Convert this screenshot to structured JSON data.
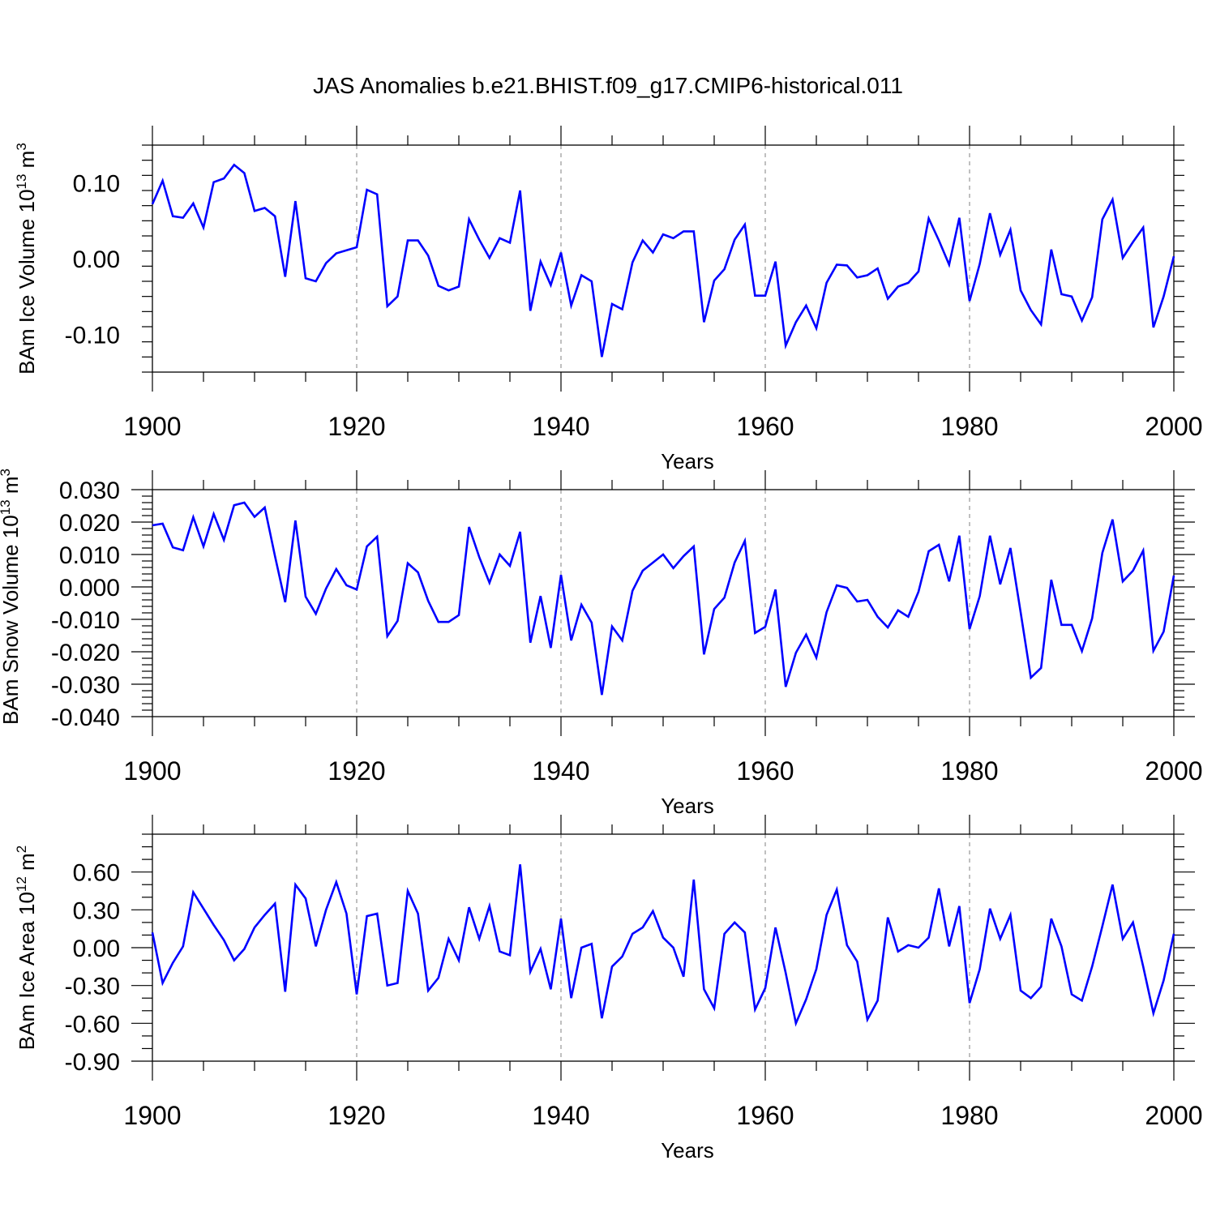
{
  "title": "JAS Anomalies b.e21.BHIST.f09_g17.CMIP6-historical.011",
  "colors": {
    "line": "#0000ff",
    "axis": "#000000",
    "grid": "#808080"
  },
  "chart_data": [
    {
      "type": "line",
      "name": "ice-volume",
      "ylabel_main": "BAm Ice Volume 10",
      "ylabel_sup1": "13",
      "ylabel_mid": " m",
      "ylabel_sup2": "3",
      "xlabel": "Years",
      "xlim": [
        1900,
        2000
      ],
      "ylim": [
        -0.15,
        0.15
      ],
      "x_ticks": [
        1900,
        1920,
        1940,
        1960,
        1980,
        2000
      ],
      "x_tick_labels": [
        "1900",
        "1920",
        "1940",
        "1960",
        "1980",
        "2000"
      ],
      "y_ticks": [
        -0.1,
        0.0,
        0.1
      ],
      "y_tick_labels": [
        "-0.10",
        "0.00",
        "0.10"
      ],
      "y_minor_step": 0.02,
      "x_start": 1900,
      "series": [
        {
          "name": "BAm Ice Volume",
          "values": [
            0.072,
            0.103,
            0.056,
            0.054,
            0.073,
            0.041,
            0.101,
            0.106,
            0.124,
            0.113,
            0.063,
            0.067,
            0.056,
            -0.024,
            0.076,
            -0.026,
            -0.03,
            -0.006,
            0.007,
            0.011,
            0.015,
            0.091,
            0.085,
            -0.063,
            -0.05,
            0.024,
            0.024,
            0.004,
            -0.036,
            -0.042,
            -0.037,
            0.052,
            0.025,
            0.001,
            0.027,
            0.021,
            0.09,
            -0.069,
            -0.004,
            -0.035,
            0.008,
            -0.062,
            -0.022,
            -0.03,
            -0.13,
            -0.06,
            -0.067,
            -0.005,
            0.024,
            0.008,
            0.032,
            0.027,
            0.036,
            0.036,
            -0.084,
            -0.029,
            -0.014,
            0.025,
            0.045,
            -0.049,
            -0.049,
            -0.004,
            -0.115,
            -0.084,
            -0.062,
            -0.092,
            -0.032,
            -0.008,
            -0.009,
            -0.025,
            -0.022,
            -0.013,
            -0.053,
            -0.037,
            -0.032,
            -0.017,
            0.053,
            0.024,
            -0.008,
            0.054,
            -0.056,
            -0.007,
            0.06,
            0.005,
            0.038,
            -0.042,
            -0.068,
            -0.087,
            0.012,
            -0.047,
            -0.05,
            -0.082,
            -0.051,
            0.052,
            0.078,
            0.001,
            0.022,
            0.041,
            -0.091,
            -0.05,
            0.003
          ]
        }
      ]
    },
    {
      "type": "line",
      "name": "snow-volume",
      "ylabel_main": "BAm Snow Volume 10",
      "ylabel_sup1": "13",
      "ylabel_mid": " m",
      "ylabel_sup2": "3",
      "xlabel": "Years",
      "xlim": [
        1900,
        2000
      ],
      "ylim": [
        -0.04,
        0.03
      ],
      "x_ticks": [
        1900,
        1920,
        1940,
        1960,
        1980,
        2000
      ],
      "x_tick_labels": [
        "1900",
        "1920",
        "1940",
        "1960",
        "1980",
        "2000"
      ],
      "y_ticks": [
        -0.04,
        -0.03,
        -0.02,
        -0.01,
        0.0,
        0.01,
        0.02,
        0.03
      ],
      "y_tick_labels": [
        "-0.040",
        "-0.030",
        "-0.020",
        "-0.010",
        "0.000",
        "0.010",
        "0.020",
        "0.030"
      ],
      "y_minor_step": 0.002,
      "x_start": 1900,
      "series": [
        {
          "name": "BAm Snow Volume",
          "values": [
            0.019,
            0.0195,
            0.0122,
            0.0113,
            0.0215,
            0.0125,
            0.0225,
            0.0145,
            0.0252,
            0.026,
            0.0216,
            0.0245,
            0.0095,
            -0.0047,
            0.0205,
            -0.003,
            -0.0083,
            -0.0005,
            0.0055,
            0.0005,
            -0.0008,
            0.0125,
            0.0155,
            -0.0152,
            -0.0105,
            0.0073,
            0.0045,
            -0.0043,
            -0.0108,
            -0.0108,
            -0.0087,
            0.0185,
            0.0092,
            0.0013,
            0.01,
            0.0065,
            0.017,
            -0.0172,
            -0.0028,
            -0.0188,
            0.0037,
            -0.0165,
            -0.0055,
            -0.011,
            -0.0333,
            -0.0122,
            -0.0165,
            -0.0012,
            0.005,
            0.0075,
            0.01,
            0.0058,
            0.0095,
            0.0125,
            -0.0208,
            -0.0068,
            -0.0033,
            0.0075,
            0.0142,
            -0.0142,
            -0.0123,
            -0.0008,
            -0.0308,
            -0.0203,
            -0.0147,
            -0.0218,
            -0.0078,
            0.0005,
            -0.0003,
            -0.0045,
            -0.004,
            -0.0092,
            -0.0125,
            -0.0072,
            -0.0092,
            -0.0015,
            0.011,
            0.013,
            0.0017,
            0.0158,
            -0.013,
            -0.0028,
            0.0158,
            0.0008,
            0.012,
            -0.0078,
            -0.028,
            -0.025,
            0.0022,
            -0.0117,
            -0.0117,
            -0.0198,
            -0.0097,
            0.0105,
            0.0208,
            0.0017,
            0.005,
            0.0112,
            -0.0197,
            -0.0138,
            0.0035
          ]
        }
      ]
    },
    {
      "type": "line",
      "name": "ice-area",
      "ylabel_main": "BAm Ice Area 10",
      "ylabel_sup1": "12",
      "ylabel_mid": " m",
      "ylabel_sup2": "2",
      "xlabel": "Years",
      "xlim": [
        1900,
        2000
      ],
      "ylim": [
        -0.9,
        0.9
      ],
      "x_ticks": [
        1900,
        1920,
        1940,
        1960,
        1980,
        2000
      ],
      "x_tick_labels": [
        "1900",
        "1920",
        "1940",
        "1960",
        "1980",
        "2000"
      ],
      "y_ticks": [
        -0.9,
        -0.6,
        -0.3,
        0.0,
        0.3,
        0.6
      ],
      "y_tick_labels": [
        "-0.90",
        "-0.60",
        "-0.30",
        "0.00",
        "0.30",
        "0.60"
      ],
      "y_minor_step": 0.1,
      "x_start": 1900,
      "series": [
        {
          "name": "BAm Ice Area",
          "values": [
            0.12,
            -0.28,
            -0.12,
            0.01,
            0.44,
            0.31,
            0.18,
            0.06,
            -0.1,
            -0.01,
            0.16,
            0.26,
            0.35,
            -0.35,
            0.5,
            0.39,
            0.01,
            0.3,
            0.52,
            0.27,
            -0.37,
            0.25,
            0.27,
            -0.3,
            -0.28,
            0.45,
            0.27,
            -0.34,
            -0.24,
            0.07,
            -0.1,
            0.32,
            0.07,
            0.33,
            -0.03,
            -0.06,
            0.66,
            -0.19,
            -0.01,
            -0.33,
            0.23,
            -0.4,
            0.0,
            0.03,
            -0.56,
            -0.15,
            -0.07,
            0.11,
            0.16,
            0.29,
            0.08,
            0.0,
            -0.23,
            0.54,
            -0.33,
            -0.48,
            0.11,
            0.2,
            0.12,
            -0.49,
            -0.32,
            0.16,
            -0.2,
            -0.6,
            -0.41,
            -0.17,
            0.26,
            0.46,
            0.02,
            -0.11,
            -0.57,
            -0.42,
            0.24,
            -0.03,
            0.02,
            0.0,
            0.08,
            0.47,
            0.01,
            0.33,
            -0.44,
            -0.17,
            0.31,
            0.07,
            0.26,
            -0.34,
            -0.4,
            -0.31,
            0.23,
            0.01,
            -0.37,
            -0.42,
            -0.15,
            0.17,
            0.5,
            0.07,
            0.2,
            -0.15,
            -0.52,
            -0.26,
            0.11
          ]
        }
      ]
    }
  ]
}
